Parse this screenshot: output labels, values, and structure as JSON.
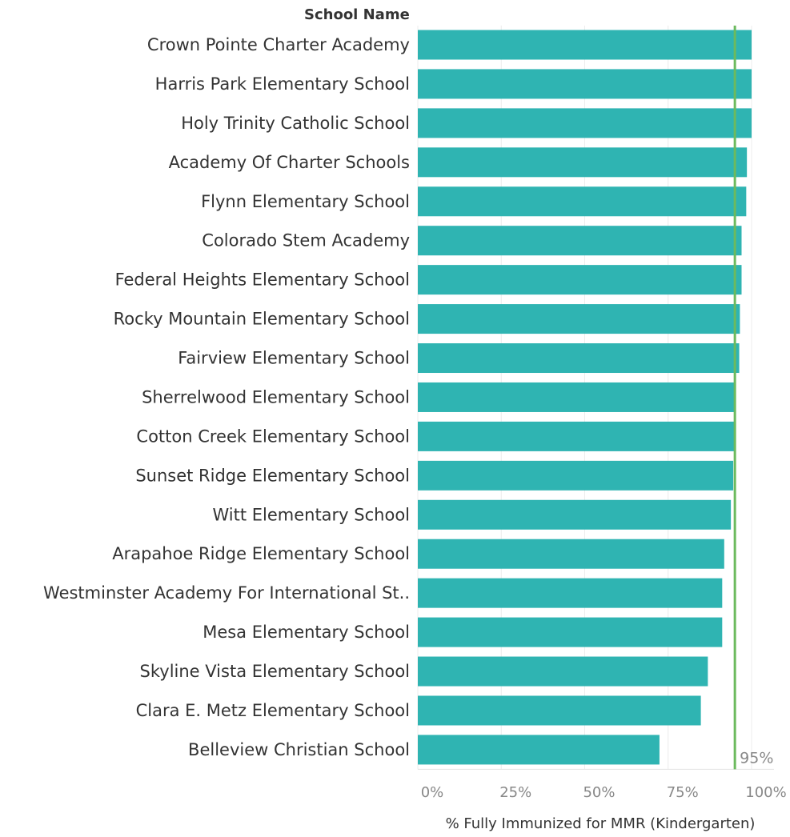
{
  "chart_data": {
    "type": "bar",
    "orientation": "horizontal",
    "row_header": "School Name",
    "xlabel": "% Fully Immunized for MMR (Kindergarten)",
    "xlim": [
      0,
      1
    ],
    "x_ticks": [
      0,
      0.25,
      0.5,
      0.75,
      1.0
    ],
    "x_tick_labels": [
      "0%",
      "25%",
      "50%",
      "75%",
      "100%"
    ],
    "grid": true,
    "categories": [
      "Crown Pointe Charter Academy",
      "Harris Park Elementary School",
      "Holy Trinity Catholic School",
      "Academy Of Charter Schools",
      "Flynn Elementary School",
      "Colorado Stem Academy",
      "Federal Heights Elementary School",
      "Rocky Mountain Elementary School",
      "Fairview Elementary School",
      "Sherrelwood Elementary School",
      "Cotton Creek Elementary School",
      "Sunset Ridge Elementary School",
      "Witt Elementary School",
      "Arapahoe Ridge Elementary School",
      "Westminster Academy For International St..",
      "Mesa Elementary School",
      "Skyline Vista Elementary School",
      "Clara E. Metz Elementary School",
      "Belleview Christian School"
    ],
    "values": [
      1.0,
      1.0,
      1.0,
      0.986,
      0.984,
      0.97,
      0.97,
      0.965,
      0.963,
      0.952,
      0.952,
      0.945,
      0.938,
      0.918,
      0.912,
      0.912,
      0.869,
      0.848,
      0.724
    ],
    "reference_line": {
      "value": 0.95,
      "label": "95%",
      "color": "#6cba5e"
    },
    "bar_color": "#2fb4b2"
  }
}
